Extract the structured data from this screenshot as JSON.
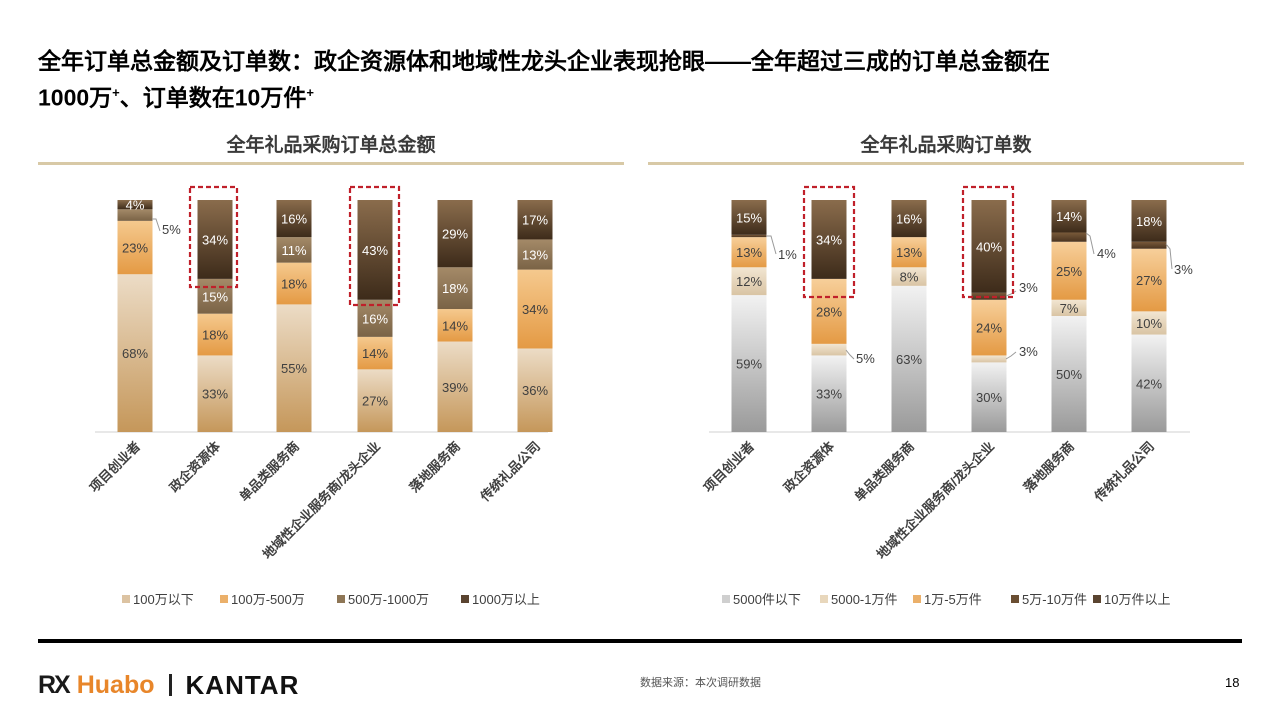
{
  "slide": {
    "title_line1": "全年订单总金额及订单数：政企资源体和地域性龙头企业表现抢眼——全年超过三成的订单总金额在",
    "title_line2": "1000万",
    "title_sup1": "+",
    "title_line2b": "、订单数在10万件",
    "title_sup2": "+",
    "source": "数据来源：本次调研数据",
    "page_number": "18",
    "logo_rx": "RX",
    "logo_huabo": "Huabo",
    "logo_kantar": "KANTAR"
  },
  "colors": {
    "rule": "#d8c9a6",
    "highlight_box": "#c0202a",
    "huabo_orange": "#e8862a"
  },
  "chart_data": [
    {
      "type": "bar",
      "stacked": true,
      "percent": true,
      "title": "全年礼品采购订单总金额",
      "categories": [
        "项目创业者",
        "政企资源体",
        "单品类服务商",
        "地域性企业服务商/龙头企业",
        "落地服务商",
        "传统礼品公司"
      ],
      "series": [
        {
          "name": "100万以下",
          "values": [
            68,
            33,
            55,
            27,
            39,
            36
          ]
        },
        {
          "name": "100万-500万",
          "values": [
            23,
            18,
            18,
            14,
            14,
            34
          ]
        },
        {
          "name": "500万-1000万",
          "values": [
            5,
            15,
            11,
            16,
            18,
            13
          ]
        },
        {
          "name": "1000万以上",
          "values": [
            4,
            34,
            16,
            43,
            29,
            17
          ]
        }
      ],
      "highlight": [
        "政企资源体",
        "地域性企业服务商/龙头企业"
      ],
      "legend_position": "bottom",
      "grid": false
    },
    {
      "type": "bar",
      "stacked": true,
      "percent": true,
      "title": "全年礼品采购订单数",
      "categories": [
        "项目创业者",
        "政企资源体",
        "单品类服务商",
        "地域性企业服务商/龙头企业",
        "落地服务商",
        "传统礼品公司"
      ],
      "series": [
        {
          "name": "5000件以下",
          "values": [
            59,
            33,
            63,
            30,
            50,
            42
          ]
        },
        {
          "name": "5000-1万件",
          "values": [
            12,
            5,
            8,
            3,
            7,
            10
          ]
        },
        {
          "name": "1万-5万件",
          "values": [
            13,
            28,
            13,
            24,
            25,
            27
          ]
        },
        {
          "name": "5万-10万件",
          "values": [
            1,
            0,
            0,
            3,
            4,
            3
          ]
        },
        {
          "name": "10万件以上",
          "values": [
            15,
            34,
            16,
            40,
            14,
            18
          ]
        }
      ],
      "highlight": [
        "政企资源体",
        "地域性企业服务商/龙头企业"
      ],
      "legend_position": "bottom",
      "grid": false
    }
  ]
}
